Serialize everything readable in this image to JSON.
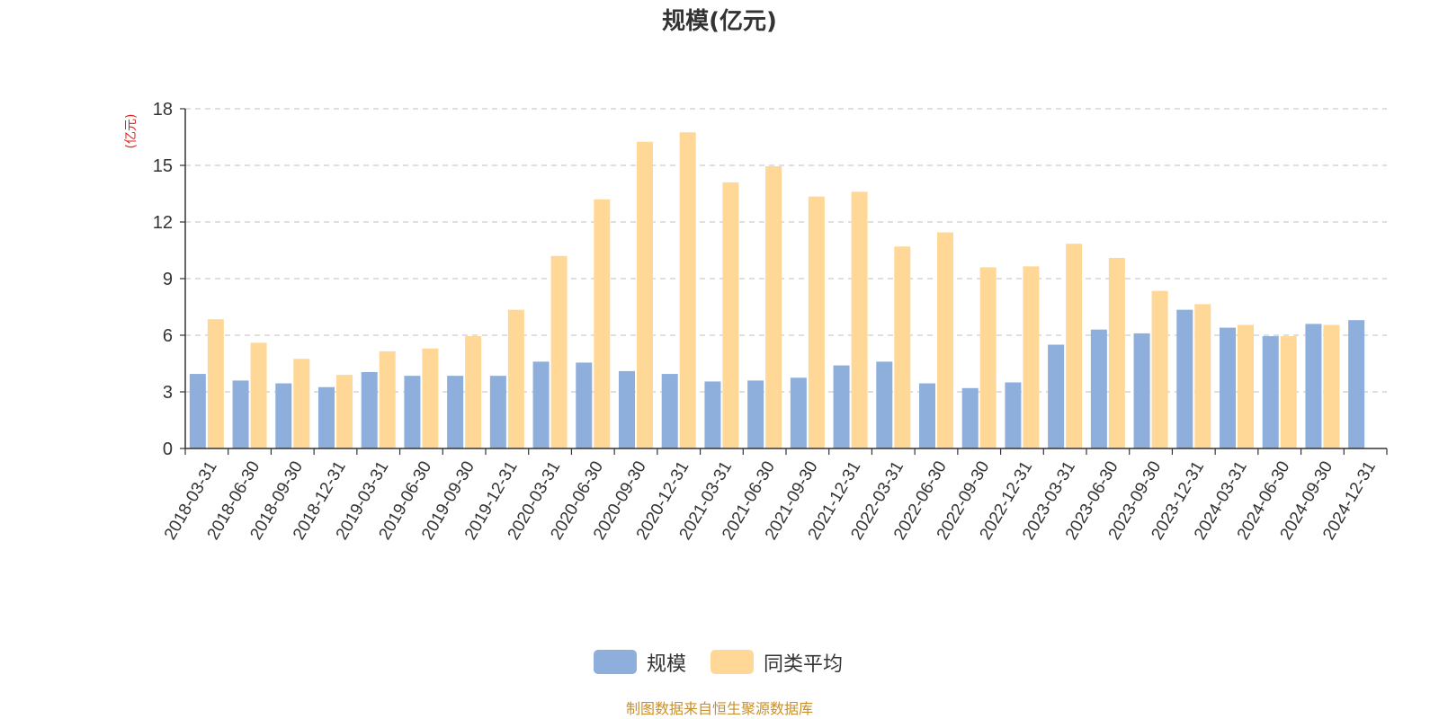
{
  "title": "规模(亿元)",
  "source_note": "制图数据来自恒生聚源数据库",
  "colors": {
    "series_scale": "#8eaedb",
    "series_peer_avg": "#ffd898",
    "grid": "#cccccc",
    "axis": "#333333",
    "unit_label": "#e0201c",
    "source_note": "#c8902c"
  },
  "chart_data": {
    "type": "bar",
    "title": "规模(亿元)",
    "ylabel": "(亿元)",
    "xlabel": "",
    "ylim": [
      0,
      18
    ],
    "yticks": [
      0,
      3,
      6,
      9,
      12,
      15,
      18
    ],
    "grid": "horizontal-dashed",
    "legend_position": "bottom-center",
    "categories": [
      "2018-03-31",
      "2018-06-30",
      "2018-09-30",
      "2018-12-31",
      "2019-03-31",
      "2019-06-30",
      "2019-09-30",
      "2019-12-31",
      "2020-03-31",
      "2020-06-30",
      "2020-09-30",
      "2020-12-31",
      "2021-03-31",
      "2021-06-30",
      "2021-09-30",
      "2021-12-31",
      "2022-03-31",
      "2022-06-30",
      "2022-09-30",
      "2022-12-31",
      "2023-03-31",
      "2023-06-30",
      "2023-09-30",
      "2023-12-31",
      "2024-03-31",
      "2024-06-30",
      "2024-09-30",
      "2024-12-31"
    ],
    "series": [
      {
        "name": "规模",
        "color": "#8eaedb",
        "values": [
          3.95,
          3.6,
          3.45,
          3.25,
          4.05,
          3.85,
          3.85,
          3.85,
          4.6,
          4.55,
          4.1,
          3.95,
          3.55,
          3.6,
          3.75,
          4.4,
          4.6,
          3.45,
          3.2,
          3.5,
          5.5,
          6.3,
          6.1,
          7.35,
          6.4,
          5.95,
          6.6,
          6.8
        ]
      },
      {
        "name": "同类平均",
        "color": "#ffd898",
        "values": [
          6.85,
          5.6,
          4.75,
          3.9,
          5.15,
          5.3,
          5.95,
          7.35,
          10.2,
          13.2,
          16.25,
          16.75,
          14.1,
          14.95,
          13.35,
          13.6,
          10.7,
          11.45,
          9.6,
          9.65,
          10.85,
          10.1,
          8.35,
          7.65,
          6.55,
          5.95,
          6.55,
          null
        ]
      }
    ]
  }
}
